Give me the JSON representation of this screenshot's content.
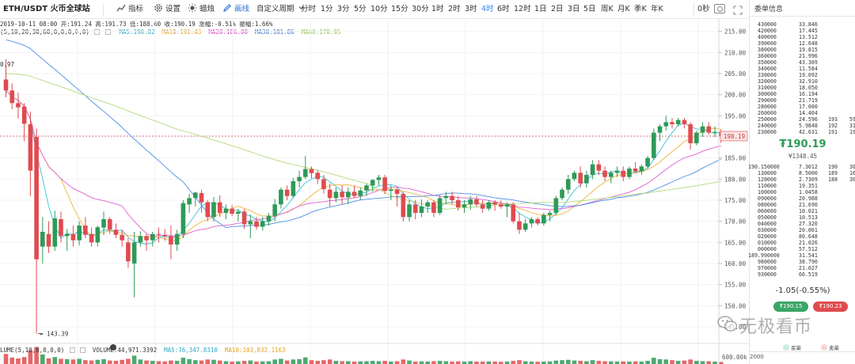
{
  "toolbar": {
    "symbol": "ETH/USDT 火币全球站",
    "indicators_label": "指标",
    "settings_label": "设置",
    "candle_label": "蜡烛",
    "draw_label": "画线",
    "custom_period_label": "自定义周期",
    "periods": [
      "分时",
      "1分",
      "3分",
      "5分",
      "10分",
      "15分",
      "30分",
      "1时",
      "2时",
      "3时",
      "4时",
      "6时",
      "12时",
      "1日",
      "2日",
      "3日",
      "5日",
      "周K",
      "月K",
      "季K",
      "年K"
    ],
    "active_period": "4时",
    "zoom_label": "0秒"
  },
  "legend": {
    "ohlc": "2019-10-11 08:00  开:191.24  高:191.73  低:188.60  收:190.19  涨幅:-0.51%  振幅:1.66%",
    "ma_params": "(5,10,20,30,60,0,0,0,0,0)",
    "ma5": "MA5:190.82",
    "ma10": "MA10:191.43",
    "ma20": "MA20:186.00",
    "ma30": "MA30:181.86",
    "ma60": "MA60:178.95",
    "volume_prefix": "LUME(5,10,0,0,0,0)",
    "volume": "VOLUME:44,971.3392",
    "vol_ma5": "MA5:76,347.8310",
    "vol_ma10": "MA10:103,832.1163"
  },
  "colors": {
    "up": "#2e9a57",
    "down": "#e04b4f",
    "ma5": "#3ac0d6",
    "ma10": "#f0b33a",
    "ma20": "#e05fd0",
    "ma30": "#4f8fe8",
    "ma60": "#b3d97a",
    "ma5_text": "#2aa9c4",
    "ma10_text": "#e0a020",
    "ma20_text": "#d63fc4",
    "ma30_text": "#3b74cf",
    "ma60_text": "#8fc04a"
  },
  "chart_data": {
    "type": "candlestick",
    "period": "4时",
    "y_axis_ticks": [
      "215.00",
      "210.00",
      "205.00",
      "200.00",
      "195.00",
      "190.00",
      "185.00",
      "180.00",
      "175.00",
      "170.00",
      "165.00",
      "160.00",
      "155.00",
      "150.00",
      "145.00"
    ],
    "y_range": [
      142,
      217
    ],
    "volume_axis_tick": "600.00k",
    "last_price_tag": "190.19",
    "high_marker": "0.97",
    "low_marker": "143.39",
    "candles": [
      [
        203.6,
        208.4,
        199.4,
        201.0
      ],
      [
        201.0,
        202.7,
        196.6,
        198.0
      ],
      [
        198.0,
        200.5,
        194.4,
        197.0
      ],
      [
        197.2,
        198.0,
        189.0,
        193.1
      ],
      [
        193.0,
        196.0,
        176.0,
        182.0
      ],
      [
        190.0,
        192.0,
        143.4,
        161.0
      ],
      [
        164.0,
        171.0,
        160.0,
        167.5
      ],
      [
        167.0,
        170.0,
        162.5,
        164.0
      ],
      [
        164.0,
        172.5,
        163.0,
        170.7
      ],
      [
        170.5,
        172.3,
        165.0,
        166.5
      ],
      [
        166.5,
        168.2,
        163.0,
        167.0
      ],
      [
        167.0,
        169.0,
        164.0,
        165.5
      ],
      [
        165.5,
        170.0,
        164.3,
        169.0
      ],
      [
        169.0,
        171.0,
        166.0,
        166.8
      ],
      [
        167.0,
        168.5,
        164.0,
        165.0
      ],
      [
        165.0,
        169.0,
        164.0,
        168.6
      ],
      [
        168.5,
        172.3,
        166.7,
        170.5
      ],
      [
        170.5,
        171.0,
        167.0,
        168.0
      ],
      [
        168.0,
        169.5,
        166.0,
        166.8
      ],
      [
        166.8,
        168.0,
        164.0,
        165.5
      ],
      [
        165.0,
        166.0,
        159.0,
        160.5
      ],
      [
        160.0,
        167.5,
        152.0,
        165.0
      ],
      [
        165.0,
        167.6,
        164.0,
        166.5
      ],
      [
        166.5,
        167.0,
        163.0,
        165.5
      ],
      [
        165.5,
        167.5,
        164.0,
        167.0
      ],
      [
        167.0,
        168.5,
        165.0,
        166.8
      ],
      [
        166.8,
        168.2,
        165.4,
        166.5
      ],
      [
        166.5,
        169.0,
        161.0,
        164.5
      ],
      [
        164.5,
        168.0,
        163.0,
        167.0
      ],
      [
        167.0,
        175.0,
        166.0,
        174.3
      ],
      [
        174.0,
        176.5,
        172.0,
        175.5
      ],
      [
        175.5,
        177.0,
        173.5,
        176.8
      ],
      [
        176.7,
        177.5,
        172.0,
        174.5
      ],
      [
        174.5,
        175.0,
        170.0,
        171.0
      ],
      [
        171.0,
        175.8,
        170.0,
        174.5
      ],
      [
        174.5,
        176.2,
        171.0,
        172.0
      ],
      [
        172.0,
        174.0,
        170.5,
        173.0
      ],
      [
        173.0,
        173.8,
        171.3,
        171.8
      ],
      [
        171.8,
        172.9,
        170.0,
        172.3
      ],
      [
        172.3,
        172.9,
        168.2,
        169.3
      ],
      [
        169.3,
        171.6,
        166.0,
        170.0
      ],
      [
        170.0,
        171.0,
        168.0,
        168.7
      ],
      [
        168.7,
        171.0,
        167.8,
        170.0
      ],
      [
        170.0,
        172.0,
        169.0,
        171.3
      ],
      [
        171.3,
        175.3,
        170.0,
        174.0
      ],
      [
        174.0,
        178.0,
        173.0,
        177.5
      ],
      [
        177.5,
        178.5,
        175.0,
        176.0
      ],
      [
        176.0,
        180.3,
        175.5,
        179.5
      ],
      [
        179.5,
        182.0,
        178.0,
        180.5
      ],
      [
        180.5,
        185.5,
        180.0,
        182.4
      ],
      [
        182.4,
        183.0,
        180.2,
        181.4
      ],
      [
        181.5,
        182.1,
        178.8,
        180.0
      ],
      [
        180.0,
        181.0,
        176.6,
        177.6
      ],
      [
        177.5,
        179.0,
        173.5,
        175.5
      ],
      [
        175.5,
        178.0,
        174.5,
        177.0
      ],
      [
        177.0,
        178.5,
        174.0,
        175.7
      ],
      [
        175.7,
        178.0,
        174.0,
        177.0
      ],
      [
        177.0,
        178.5,
        175.5,
        176.0
      ],
      [
        176.0,
        178.0,
        175.0,
        177.3
      ],
      [
        177.3,
        179.0,
        176.0,
        178.5
      ],
      [
        178.5,
        180.0,
        177.0,
        179.8
      ],
      [
        179.8,
        181.0,
        178.5,
        180.4
      ],
      [
        180.4,
        181.0,
        176.5,
        177.2
      ],
      [
        177.2,
        178.5,
        175.0,
        177.5
      ],
      [
        177.5,
        178.0,
        173.5,
        176.5
      ],
      [
        176.5,
        177.0,
        170.0,
        171.0
      ],
      [
        171.0,
        175.0,
        170.0,
        174.0
      ],
      [
        174.0,
        175.0,
        170.5,
        172.0
      ],
      [
        172.0,
        175.2,
        171.0,
        173.5
      ],
      [
        173.5,
        175.0,
        172.0,
        174.5
      ],
      [
        174.5,
        175.0,
        171.0,
        172.0
      ],
      [
        172.0,
        176.2,
        171.5,
        175.5
      ],
      [
        175.5,
        177.0,
        174.0,
        176.0
      ],
      [
        176.0,
        177.0,
        174.0,
        175.0
      ],
      [
        175.0,
        176.0,
        172.5,
        173.3
      ],
      [
        173.3,
        175.0,
        172.0,
        174.0
      ],
      [
        174.0,
        176.0,
        172.7,
        175.2
      ],
      [
        175.2,
        176.0,
        173.5,
        174.0
      ],
      [
        174.0,
        175.0,
        172.0,
        173.0
      ],
      [
        173.0,
        175.0,
        172.5,
        174.5
      ],
      [
        174.5,
        175.0,
        172.5,
        174.0
      ],
      [
        174.0,
        175.0,
        173.0,
        173.5
      ],
      [
        173.5,
        174.5,
        171.0,
        174.0
      ],
      [
        174.0,
        174.5,
        169.5,
        170.0
      ],
      [
        170.0,
        172.0,
        167.0,
        168.0
      ],
      [
        168.0,
        170.5,
        167.5,
        169.5
      ],
      [
        169.5,
        171.0,
        168.5,
        170.5
      ],
      [
        170.5,
        171.0,
        169.0,
        169.5
      ],
      [
        169.5,
        172.0,
        169.0,
        171.5
      ],
      [
        171.5,
        172.5,
        170.0,
        172.0
      ],
      [
        172.0,
        176.0,
        171.5,
        175.5
      ],
      [
        175.5,
        178.0,
        175.0,
        177.5
      ],
      [
        177.5,
        181.0,
        176.5,
        180.0
      ],
      [
        180.0,
        182.0,
        179.5,
        181.5
      ],
      [
        181.5,
        183.0,
        178.0,
        179.0
      ],
      [
        179.0,
        182.0,
        178.0,
        181.0
      ],
      [
        181.0,
        184.5,
        180.0,
        183.5
      ],
      [
        183.5,
        184.5,
        181.0,
        182.0
      ],
      [
        182.0,
        183.0,
        179.5,
        180.5
      ],
      [
        180.5,
        182.0,
        179.0,
        181.5
      ],
      [
        181.5,
        183.0,
        180.5,
        182.0
      ],
      [
        182.0,
        183.0,
        179.5,
        180.5
      ],
      [
        180.5,
        183.0,
        180.0,
        182.5
      ],
      [
        182.5,
        184.0,
        181.5,
        181.8
      ],
      [
        181.8,
        183.5,
        181.0,
        183.0
      ],
      [
        183.0,
        185.5,
        182.5,
        185.0
      ],
      [
        185.0,
        192.0,
        184.5,
        191.0
      ],
      [
        191.0,
        193.0,
        189.0,
        192.5
      ],
      [
        192.5,
        195.0,
        191.5,
        193.5
      ],
      [
        193.5,
        194.5,
        192.0,
        193.0
      ],
      [
        193.0,
        194.5,
        192.5,
        194.0
      ],
      [
        194.0,
        194.5,
        192.0,
        193.0
      ],
      [
        193.0,
        193.5,
        187.0,
        188.5
      ],
      [
        188.5,
        191.5,
        188.0,
        191.0
      ],
      [
        191.0,
        193.5,
        190.0,
        192.5
      ],
      [
        192.5,
        193.5,
        190.5,
        191.0
      ],
      [
        191.0,
        192.5,
        190.0,
        191.2
      ],
      [
        191.24,
        191.73,
        188.6,
        190.19
      ]
    ],
    "volume_bars": [
      58,
      37,
      32,
      40,
      78,
      98,
      55,
      33,
      40,
      30,
      28,
      26,
      30,
      22,
      20,
      24,
      28,
      20,
      18,
      24,
      30,
      48,
      26,
      20,
      18,
      16,
      15,
      20,
      18,
      36,
      28,
      22,
      20,
      26,
      24,
      20,
      16,
      14,
      15,
      18,
      20,
      14,
      15,
      16,
      26,
      30,
      20,
      26,
      28,
      38,
      22,
      18,
      22,
      26,
      18,
      16,
      16,
      14,
      15,
      16,
      18,
      16,
      18,
      14,
      16,
      26,
      20,
      14,
      15,
      14,
      16,
      18,
      16,
      14,
      15,
      14,
      16,
      14,
      14,
      15,
      14,
      13,
      14,
      18,
      22,
      16,
      14,
      13,
      14,
      15,
      20,
      22,
      24,
      20,
      18,
      16,
      22,
      18,
      16,
      15,
      14,
      15,
      14,
      15,
      14,
      18,
      36,
      28,
      26,
      22,
      18,
      20,
      26,
      18,
      16,
      16,
      14,
      12
    ]
  },
  "orderbook": {
    "title": "委单信息",
    "asks": [
      [
        "430000",
        "33.846",
        "",
        ""
      ],
      [
        "420000",
        "17.445",
        "",
        ""
      ],
      [
        "400000",
        "13.512",
        "",
        ""
      ],
      [
        "390000",
        "12.648",
        "",
        ""
      ],
      [
        "380000",
        "19.815",
        "",
        ""
      ],
      [
        "360000",
        "21.996",
        "",
        ""
      ],
      [
        "350000",
        "43.309",
        "",
        ""
      ],
      [
        "340000",
        "11.584",
        "",
        ""
      ],
      [
        "330000",
        "19.092",
        "",
        ""
      ],
      [
        "320000",
        "32.910",
        "",
        ""
      ],
      [
        "310000",
        "18.050",
        "",
        ""
      ],
      [
        "300000",
        "16.194",
        "",
        ""
      ],
      [
        "290000",
        "21.719",
        "",
        ""
      ],
      [
        "280000",
        "17.000",
        "",
        ""
      ],
      [
        "260000",
        "14.404",
        "",
        ""
      ],
      [
        "250000",
        "24.596",
        "193",
        "59"
      ],
      [
        "240000",
        "5.9848",
        "192",
        "31"
      ],
      [
        "230000",
        "42.631",
        "191",
        "19"
      ]
    ],
    "last_price": "₮190.19",
    "last_price_cny": "¥1348.45",
    "bids": [
      [
        "190.150000",
        "7.3012",
        "190",
        "30"
      ],
      [
        "130000",
        "8.5000",
        "189",
        "16"
      ],
      [
        "120000",
        "2.7309",
        "188",
        "30"
      ],
      [
        "110000",
        "19.351",
        "",
        ""
      ],
      [
        "100000",
        "1.0458",
        "",
        ""
      ],
      [
        "090000",
        "20.988",
        "",
        ""
      ],
      [
        "080000",
        "21.690",
        "",
        ""
      ],
      [
        "060000",
        "10.021",
        "",
        ""
      ],
      [
        "050000",
        "10.513",
        "",
        ""
      ],
      [
        "040000",
        "27.320",
        "",
        ""
      ],
      [
        "030000",
        "20.001",
        "",
        ""
      ],
      [
        "020000",
        "80.648",
        "",
        ""
      ],
      [
        "010000",
        "21.026",
        "",
        ""
      ],
      [
        "000000",
        "57.512",
        "",
        ""
      ],
      [
        "189.990000",
        "31.541",
        "",
        ""
      ],
      [
        "980000",
        "38.790",
        "",
        ""
      ],
      [
        "970000",
        "21.027",
        "",
        ""
      ],
      [
        "930000",
        "66.519",
        "",
        ""
      ]
    ],
    "change": "-1.05(-0.55%)",
    "buy_price": "₮190.15",
    "sell_price": "₮190.23",
    "depth_buy_label": "买单",
    "depth_sell_label": "卖单",
    "depth_tick": "2000"
  },
  "watermark": {
    "text": "无极看币"
  }
}
